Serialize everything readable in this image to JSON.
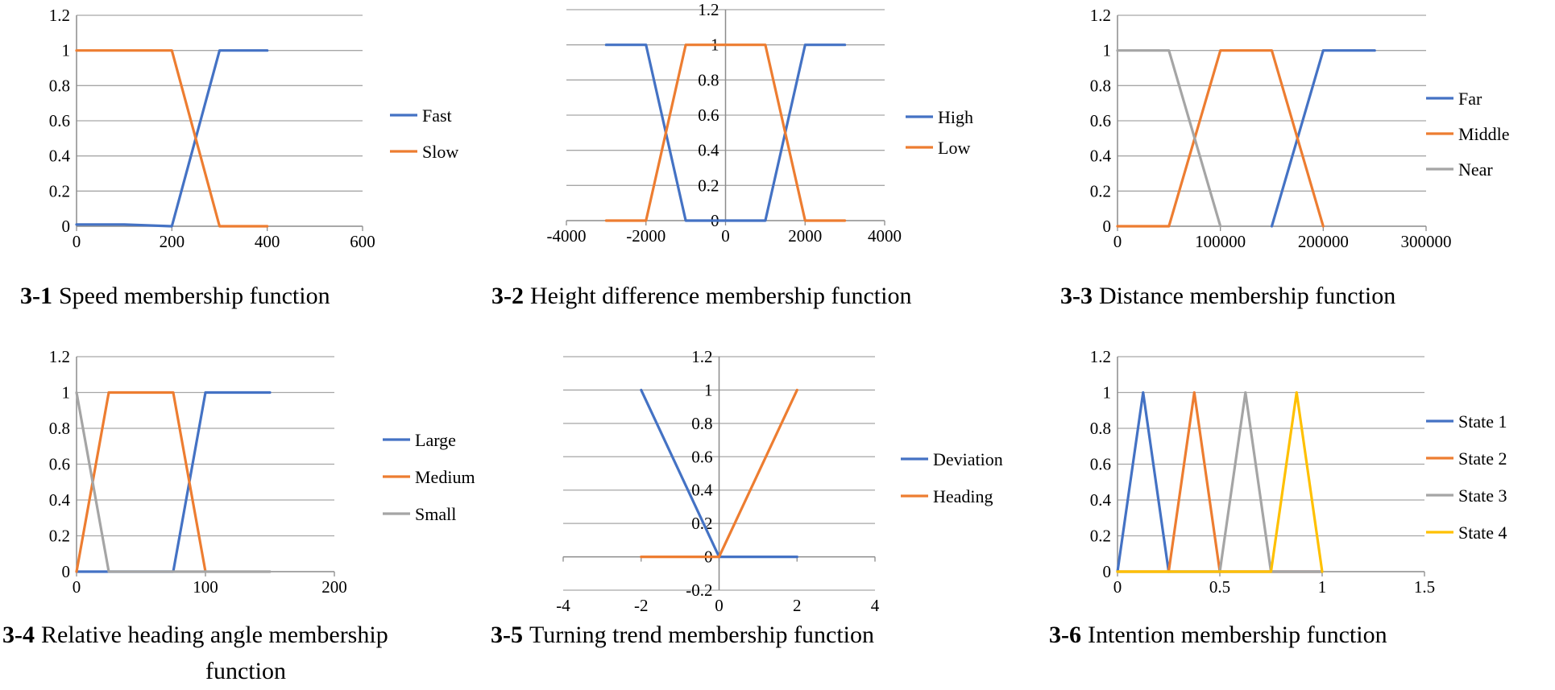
{
  "chart_data": [
    {
      "type": "line",
      "caption_number": "3-1",
      "caption": "Speed membership function",
      "xlim": [
        0,
        600
      ],
      "ylim": [
        0,
        1.2
      ],
      "xticks": [
        "0",
        "200",
        "400",
        "600"
      ],
      "yticks": [
        "0",
        "0.2",
        "0.4",
        "0.6",
        "0.8",
        "1",
        "1.2"
      ],
      "series": [
        {
          "name": "Fast",
          "color": "#4472C4",
          "x": [
            0,
            100,
            200,
            300,
            400
          ],
          "y": [
            0.01,
            0.01,
            0,
            1,
            1
          ]
        },
        {
          "name": "Slow",
          "color": "#ED7D31",
          "x": [
            0,
            200,
            300,
            400
          ],
          "y": [
            1,
            1,
            0,
            0
          ]
        }
      ]
    },
    {
      "type": "line",
      "caption_number": "3-2",
      "caption": "Height difference membership function",
      "xlim": [
        -4000,
        4000
      ],
      "ylim": [
        0,
        1.2
      ],
      "xticks": [
        "-4000",
        "-2000",
        "0",
        "2000",
        "4000"
      ],
      "yticks": [
        "0",
        "0.2",
        "0.4",
        "0.6",
        "0.8",
        "1",
        "1.2"
      ],
      "series": [
        {
          "name": "High",
          "color": "#4472C4",
          "x": [
            -3000,
            -2000,
            -1000,
            1000,
            2000,
            3000
          ],
          "y": [
            1,
            1,
            0,
            0,
            1,
            1
          ]
        },
        {
          "name": "Low",
          "color": "#ED7D31",
          "x": [
            -3000,
            -2000,
            -1000,
            1000,
            2000,
            3000
          ],
          "y": [
            0,
            0,
            1,
            1,
            0,
            0
          ]
        }
      ]
    },
    {
      "type": "line",
      "caption_number": "3-3",
      "caption": "Distance membership function",
      "xlim": [
        0,
        300000
      ],
      "ylim": [
        0,
        1.2
      ],
      "xticks": [
        "0",
        "100000",
        "200000",
        "300000"
      ],
      "yticks": [
        "0",
        "0.2",
        "0.4",
        "0.6",
        "0.8",
        "1",
        "1.2"
      ],
      "series": [
        {
          "name": "Far",
          "color": "#4472C4",
          "x": [
            150000,
            200000,
            250000
          ],
          "y": [
            0,
            1,
            1
          ]
        },
        {
          "name": "Middle",
          "color": "#ED7D31",
          "x": [
            0,
            50000,
            100000,
            150000,
            200000
          ],
          "y": [
            0,
            0,
            1,
            1,
            0
          ]
        },
        {
          "name": "Near",
          "color": "#A5A5A5",
          "x": [
            0,
            50000,
            100000
          ],
          "y": [
            1,
            1,
            0
          ]
        }
      ]
    },
    {
      "type": "line",
      "caption_number": "3-4",
      "caption": "Relative heading angle membership",
      "caption_line2": "function",
      "xlim": [
        0,
        200
      ],
      "ylim": [
        0,
        1.2
      ],
      "xticks": [
        "0",
        "100",
        "200"
      ],
      "yticks": [
        "0",
        "0.2",
        "0.4",
        "0.6",
        "0.8",
        "1",
        "1.2"
      ],
      "series": [
        {
          "name": "Large",
          "color": "#4472C4",
          "x": [
            0,
            75,
            100,
            150
          ],
          "y": [
            0,
            0,
            1,
            1
          ]
        },
        {
          "name": "Medium",
          "color": "#ED7D31",
          "x": [
            0,
            25,
            75,
            100
          ],
          "y": [
            0,
            1,
            1,
            0
          ]
        },
        {
          "name": "Small",
          "color": "#A5A5A5",
          "x": [
            0,
            25,
            150
          ],
          "y": [
            1,
            0,
            0
          ]
        }
      ]
    },
    {
      "type": "line",
      "caption_number": "3-5",
      "caption": "Turning trend membership function",
      "xlim": [
        -4,
        4
      ],
      "ylim": [
        -0.2,
        1.2
      ],
      "xticks": [
        "-4",
        "-2",
        "0",
        "2",
        "4"
      ],
      "yticks": [
        "-0.2",
        "0",
        "0.2",
        "0.4",
        "0.6",
        "0.8",
        "1",
        "1.2"
      ],
      "series": [
        {
          "name": "Deviation",
          "color": "#4472C4",
          "x": [
            -2,
            0,
            2
          ],
          "y": [
            1,
            0,
            0
          ]
        },
        {
          "name": "Heading",
          "color": "#ED7D31",
          "x": [
            -2,
            0,
            2
          ],
          "y": [
            0,
            0,
            1
          ]
        }
      ]
    },
    {
      "type": "line",
      "caption_number": "3-6",
      "caption": "Intention membership function",
      "xlim": [
        0,
        1.5
      ],
      "ylim": [
        0,
        1.2
      ],
      "xticks": [
        "0",
        "0.5",
        "1",
        "1.5"
      ],
      "yticks": [
        "0",
        "0.2",
        "0.4",
        "0.6",
        "0.8",
        "1",
        "1.2"
      ],
      "series": [
        {
          "name": "State 1",
          "color": "#4472C4",
          "x": [
            0,
            0.125,
            0.25,
            1
          ],
          "y": [
            0,
            1,
            0,
            0
          ]
        },
        {
          "name": "State 2",
          "color": "#ED7D31",
          "x": [
            0,
            0.25,
            0.375,
            0.5,
            1
          ],
          "y": [
            0,
            0,
            1,
            0,
            0
          ]
        },
        {
          "name": "State 3",
          "color": "#A5A5A5",
          "x": [
            0,
            0.5,
            0.625,
            0.75,
            1
          ],
          "y": [
            0,
            0,
            1,
            0,
            0
          ]
        },
        {
          "name": "State 4",
          "color": "#FFC000",
          "x": [
            0,
            0.75,
            0.875,
            1
          ],
          "y": [
            0,
            0,
            1,
            0
          ]
        }
      ]
    }
  ]
}
